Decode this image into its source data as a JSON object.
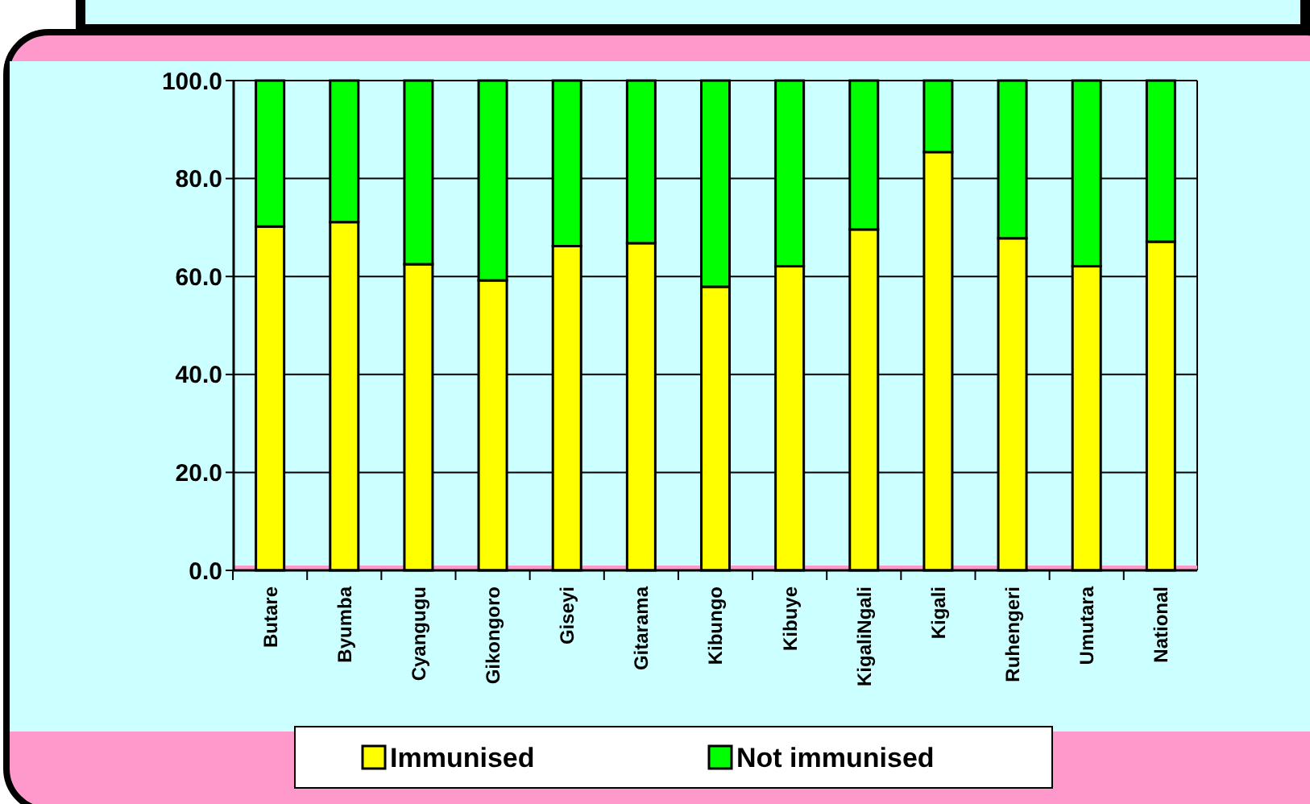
{
  "chart_data": {
    "type": "bar",
    "stacked": true,
    "categories": [
      "Butare",
      "Byumba",
      "Cyangugu",
      "Gikongoro",
      "Giseyi",
      "Gitarama",
      "Kibungo",
      "Kibuye",
      "KigaliNgali",
      "Kigali",
      "Ruhengeri",
      "Umutara",
      "National"
    ],
    "series": [
      {
        "name": "Immunised",
        "color": "#ffff00",
        "values": [
          70.2,
          71.1,
          62.5,
          59.2,
          66.2,
          66.8,
          57.9,
          62.1,
          69.6,
          85.4,
          67.8,
          62.1,
          67.1
        ]
      },
      {
        "name": "Not immunised",
        "color": "#00ff00",
        "values": [
          29.8,
          28.9,
          37.5,
          40.8,
          33.8,
          33.2,
          42.1,
          37.9,
          30.4,
          14.6,
          32.2,
          37.9,
          32.9
        ]
      }
    ],
    "ylim": [
      0,
      100
    ],
    "yticks": [
      {
        "value": 0,
        "label": "0.0"
      },
      {
        "value": 20,
        "label": "20.0"
      },
      {
        "value": 40,
        "label": "40.0"
      },
      {
        "value": 60,
        "label": "60.0"
      },
      {
        "value": 80,
        "label": "80.0"
      },
      {
        "value": 100,
        "label": "100.0"
      }
    ],
    "grid": "y",
    "legend": "bottom"
  }
}
